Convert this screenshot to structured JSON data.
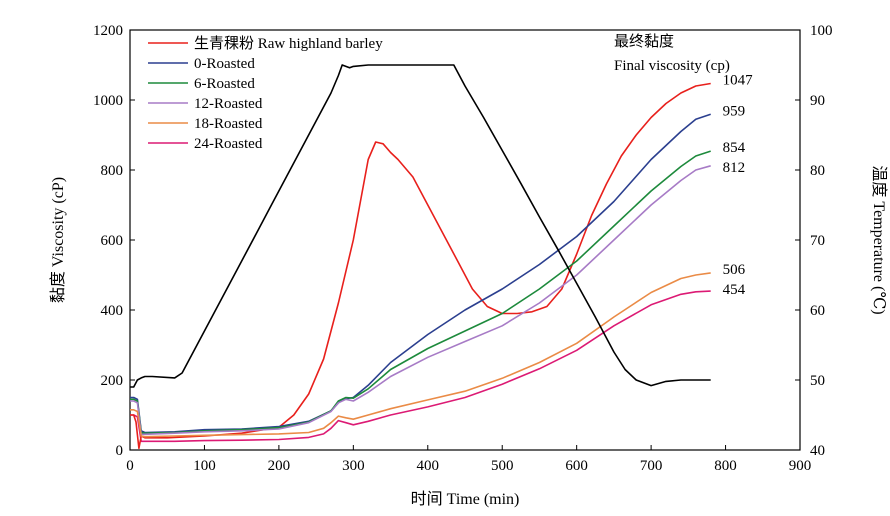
{
  "chart_data": {
    "type": "line",
    "xlabel": "时间 Time (min)",
    "ylabel_left": "黏度 Viscosity (cP)",
    "ylabel_right": "温度 Temperature (℃)",
    "xlim": [
      0,
      900
    ],
    "ylim_left": [
      0,
      1200
    ],
    "ylim_right": [
      40,
      100
    ],
    "x_ticks": [
      "0",
      "100",
      "200",
      "300",
      "400",
      "500",
      "600",
      "700",
      "800",
      "900"
    ],
    "y_ticks_left": [
      "0",
      "200",
      "400",
      "600",
      "800",
      "1000",
      "1200"
    ],
    "y_ticks_right": [
      "40",
      "50",
      "60",
      "70",
      "80",
      "90",
      "100"
    ],
    "grid": false,
    "legend_position": "top-left",
    "final_viscosity_title_cn": "最终黏度",
    "final_viscosity_title_en": "Final viscosity (cp)",
    "series": [
      {
        "name": "生青稞粉 Raw highland barley",
        "color": "#e8201c",
        "axis": "left",
        "end_label": "1047",
        "points": [
          [
            0,
            100
          ],
          [
            5,
            100
          ],
          [
            8,
            80
          ],
          [
            12,
            5
          ],
          [
            15,
            40
          ],
          [
            20,
            35
          ],
          [
            50,
            35
          ],
          [
            100,
            40
          ],
          [
            150,
            48
          ],
          [
            200,
            65
          ],
          [
            220,
            100
          ],
          [
            240,
            160
          ],
          [
            260,
            260
          ],
          [
            280,
            420
          ],
          [
            300,
            600
          ],
          [
            320,
            830
          ],
          [
            330,
            880
          ],
          [
            340,
            875
          ],
          [
            350,
            850
          ],
          [
            360,
            830
          ],
          [
            380,
            780
          ],
          [
            400,
            700
          ],
          [
            420,
            620
          ],
          [
            440,
            540
          ],
          [
            460,
            460
          ],
          [
            480,
            410
          ],
          [
            500,
            390
          ],
          [
            520,
            390
          ],
          [
            540,
            395
          ],
          [
            560,
            410
          ],
          [
            580,
            460
          ],
          [
            600,
            560
          ],
          [
            620,
            670
          ],
          [
            640,
            760
          ],
          [
            660,
            840
          ],
          [
            680,
            900
          ],
          [
            700,
            950
          ],
          [
            720,
            990
          ],
          [
            740,
            1020
          ],
          [
            760,
            1040
          ],
          [
            780,
            1047
          ]
        ]
      },
      {
        "name": "0-Roasted",
        "color": "#2b3f8f",
        "axis": "left",
        "end_label": "959",
        "points": [
          [
            0,
            150
          ],
          [
            5,
            150
          ],
          [
            10,
            145
          ],
          [
            15,
            55
          ],
          [
            20,
            50
          ],
          [
            60,
            52
          ],
          [
            100,
            58
          ],
          [
            150,
            60
          ],
          [
            200,
            67
          ],
          [
            240,
            82
          ],
          [
            270,
            112
          ],
          [
            280,
            135
          ],
          [
            285,
            145
          ],
          [
            300,
            150
          ],
          [
            320,
            185
          ],
          [
            350,
            250
          ],
          [
            400,
            330
          ],
          [
            450,
            400
          ],
          [
            500,
            460
          ],
          [
            550,
            530
          ],
          [
            600,
            610
          ],
          [
            650,
            710
          ],
          [
            700,
            830
          ],
          [
            740,
            910
          ],
          [
            760,
            945
          ],
          [
            780,
            959
          ]
        ]
      },
      {
        "name": "6-Roasted",
        "color": "#1d8a3c",
        "axis": "left",
        "end_label": "854",
        "points": [
          [
            0,
            145
          ],
          [
            5,
            145
          ],
          [
            10,
            140
          ],
          [
            15,
            50
          ],
          [
            20,
            48
          ],
          [
            60,
            50
          ],
          [
            100,
            55
          ],
          [
            150,
            58
          ],
          [
            200,
            64
          ],
          [
            240,
            80
          ],
          [
            270,
            112
          ],
          [
            280,
            140
          ],
          [
            290,
            150
          ],
          [
            300,
            148
          ],
          [
            320,
            175
          ],
          [
            350,
            230
          ],
          [
            400,
            290
          ],
          [
            450,
            340
          ],
          [
            500,
            390
          ],
          [
            550,
            460
          ],
          [
            600,
            540
          ],
          [
            650,
            640
          ],
          [
            700,
            740
          ],
          [
            740,
            810
          ],
          [
            760,
            840
          ],
          [
            780,
            854
          ]
        ]
      },
      {
        "name": "12-Roasted",
        "color": "#a77bc6",
        "axis": "left",
        "end_label": "812",
        "points": [
          [
            0,
            140
          ],
          [
            5,
            140
          ],
          [
            10,
            135
          ],
          [
            15,
            45
          ],
          [
            20,
            45
          ],
          [
            60,
            48
          ],
          [
            100,
            52
          ],
          [
            150,
            55
          ],
          [
            200,
            60
          ],
          [
            240,
            78
          ],
          [
            270,
            110
          ],
          [
            280,
            135
          ],
          [
            290,
            145
          ],
          [
            300,
            140
          ],
          [
            320,
            165
          ],
          [
            350,
            210
          ],
          [
            400,
            265
          ],
          [
            450,
            310
          ],
          [
            500,
            355
          ],
          [
            550,
            420
          ],
          [
            600,
            500
          ],
          [
            650,
            600
          ],
          [
            700,
            700
          ],
          [
            740,
            770
          ],
          [
            760,
            800
          ],
          [
            780,
            812
          ]
        ]
      },
      {
        "name": "18-Roasted",
        "color": "#ea8b46",
        "axis": "left",
        "end_label": "506",
        "points": [
          [
            0,
            115
          ],
          [
            5,
            115
          ],
          [
            10,
            110
          ],
          [
            15,
            40
          ],
          [
            20,
            38
          ],
          [
            60,
            40
          ],
          [
            100,
            42
          ],
          [
            150,
            44
          ],
          [
            200,
            46
          ],
          [
            240,
            50
          ],
          [
            260,
            62
          ],
          [
            270,
            78
          ],
          [
            280,
            97
          ],
          [
            290,
            92
          ],
          [
            300,
            88
          ],
          [
            320,
            100
          ],
          [
            350,
            118
          ],
          [
            400,
            143
          ],
          [
            450,
            168
          ],
          [
            500,
            205
          ],
          [
            550,
            250
          ],
          [
            600,
            305
          ],
          [
            650,
            380
          ],
          [
            700,
            450
          ],
          [
            740,
            490
          ],
          [
            760,
            500
          ],
          [
            780,
            506
          ]
        ]
      },
      {
        "name": "24-Roasted",
        "color": "#dc1a74",
        "axis": "left",
        "end_label": "454",
        "points": [
          [
            0,
            100
          ],
          [
            5,
            100
          ],
          [
            10,
            95
          ],
          [
            15,
            25
          ],
          [
            20,
            25
          ],
          [
            60,
            25
          ],
          [
            100,
            27
          ],
          [
            150,
            28
          ],
          [
            200,
            30
          ],
          [
            240,
            36
          ],
          [
            260,
            46
          ],
          [
            270,
            62
          ],
          [
            280,
            84
          ],
          [
            290,
            78
          ],
          [
            300,
            72
          ],
          [
            320,
            82
          ],
          [
            350,
            100
          ],
          [
            400,
            123
          ],
          [
            450,
            150
          ],
          [
            500,
            188
          ],
          [
            550,
            232
          ],
          [
            600,
            285
          ],
          [
            650,
            355
          ],
          [
            700,
            415
          ],
          [
            740,
            445
          ],
          [
            760,
            452
          ],
          [
            780,
            454
          ]
        ]
      },
      {
        "color": "#000000",
        "axis": "right",
        "points": [
          [
            0,
            49
          ],
          [
            5,
            49
          ],
          [
            10,
            50
          ],
          [
            15,
            50.3
          ],
          [
            20,
            50.5
          ],
          [
            30,
            50.5
          ],
          [
            60,
            50.3
          ],
          [
            70,
            51
          ],
          [
            90,
            55
          ],
          [
            110,
            59
          ],
          [
            130,
            63
          ],
          [
            150,
            67
          ],
          [
            170,
            71
          ],
          [
            190,
            75
          ],
          [
            210,
            79
          ],
          [
            230,
            83
          ],
          [
            250,
            87
          ],
          [
            270,
            91
          ],
          [
            280,
            93.5
          ],
          [
            285,
            95
          ],
          [
            290,
            94.8
          ],
          [
            295,
            94.6
          ],
          [
            300,
            94.8
          ],
          [
            320,
            95
          ],
          [
            360,
            95
          ],
          [
            400,
            95
          ],
          [
            435,
            95
          ],
          [
            450,
            92
          ],
          [
            475,
            87.5
          ],
          [
            500,
            82.8
          ],
          [
            525,
            78.1
          ],
          [
            550,
            73.3
          ],
          [
            575,
            68.6
          ],
          [
            600,
            63.8
          ],
          [
            625,
            59
          ],
          [
            650,
            54
          ],
          [
            665,
            51.5
          ],
          [
            680,
            50
          ],
          [
            700,
            49.2
          ],
          [
            720,
            49.8
          ],
          [
            740,
            50
          ],
          [
            780,
            50
          ]
        ]
      }
    ]
  }
}
